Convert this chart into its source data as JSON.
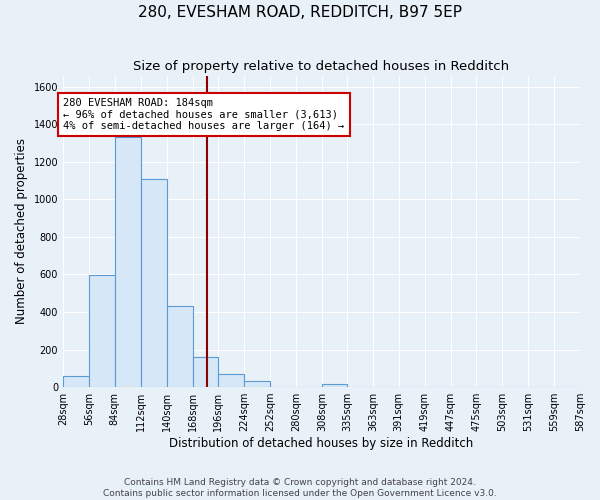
{
  "title": "280, EVESHAM ROAD, REDDITCH, B97 5EP",
  "subtitle": "Size of property relative to detached houses in Redditch",
  "xlabel": "Distribution of detached houses by size in Redditch",
  "ylabel": "Number of detached properties",
  "bin_edges": [
    28,
    56,
    84,
    112,
    140,
    168,
    196,
    224,
    252,
    280,
    308,
    335,
    363,
    391,
    419,
    447,
    475,
    503,
    531,
    559,
    587
  ],
  "bar_heights": [
    60,
    595,
    1335,
    1110,
    430,
    160,
    70,
    35,
    0,
    0,
    15,
    0,
    0,
    0,
    0,
    0,
    0,
    0,
    0,
    0
  ],
  "bar_color": "#d6e8f7",
  "bar_edgecolor": "#5b9bd5",
  "vline_x": 184,
  "vline_color": "#8b0000",
  "ylim": [
    0,
    1660
  ],
  "yticks": [
    0,
    200,
    400,
    600,
    800,
    1000,
    1200,
    1400,
    1600
  ],
  "annotation_text": "280 EVESHAM ROAD: 184sqm\n← 96% of detached houses are smaller (3,613)\n4% of semi-detached houses are larger (164) →",
  "annotation_box_color": "#ffffff",
  "annotation_box_edgecolor": "#cc0000",
  "footer_line1": "Contains HM Land Registry data © Crown copyright and database right 2024.",
  "footer_line2": "Contains public sector information licensed under the Open Government Licence v3.0.",
  "background_color": "#e8f0f8",
  "grid_color": "#ffffff",
  "title_fontsize": 11,
  "subtitle_fontsize": 9.5,
  "axis_label_fontsize": 8.5,
  "tick_fontsize": 7,
  "annotation_fontsize": 7.5,
  "footer_fontsize": 6.5
}
